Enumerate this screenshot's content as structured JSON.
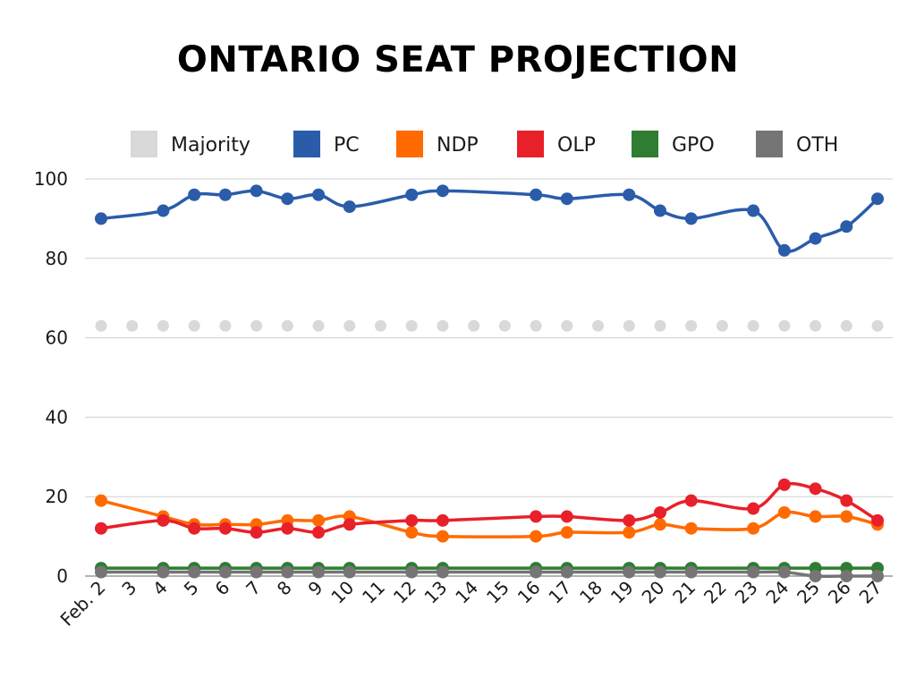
{
  "chart_data": {
    "type": "line",
    "title": "ONTARIO SEAT PROJECTION",
    "xlabel": "",
    "ylabel": "",
    "ylim": [
      0,
      100
    ],
    "y_ticks": [
      0,
      20,
      40,
      60,
      80,
      100
    ],
    "grid": true,
    "legend_position": "top",
    "categories": [
      "Feb. 2",
      "3",
      "4",
      "5",
      "6",
      "7",
      "8",
      "9",
      "10",
      "11",
      "12",
      "13",
      "14",
      "15",
      "16",
      "17",
      "18",
      "19",
      "20",
      "21",
      "22",
      "23",
      "24",
      "25",
      "26",
      "27"
    ],
    "series": [
      {
        "name": "Majority",
        "color": "#d9d9d9",
        "values": [
          63,
          63,
          63,
          63,
          63,
          63,
          63,
          63,
          63,
          63,
          63,
          63,
          63,
          63,
          63,
          63,
          63,
          63,
          63,
          63,
          63,
          63,
          63,
          63,
          63,
          63
        ]
      },
      {
        "name": "PC",
        "color": "#2a5caa",
        "values": [
          90,
          null,
          92,
          96,
          96,
          97,
          95,
          96,
          93,
          null,
          96,
          97,
          null,
          null,
          96,
          95,
          null,
          96,
          92,
          90,
          null,
          92,
          82,
          85,
          88,
          95
        ]
      },
      {
        "name": "NDP",
        "color": "#ff6a00",
        "values": [
          19,
          null,
          15,
          13,
          13,
          13,
          14,
          14,
          15,
          null,
          11,
          10,
          null,
          null,
          10,
          11,
          null,
          11,
          13,
          12,
          null,
          12,
          16,
          15,
          15,
          13
        ]
      },
      {
        "name": "OLP",
        "color": "#e8202a",
        "values": [
          12,
          null,
          14,
          12,
          12,
          11,
          12,
          11,
          13,
          null,
          14,
          14,
          null,
          null,
          15,
          15,
          null,
          14,
          16,
          19,
          null,
          17,
          23,
          22,
          19,
          14
        ]
      },
      {
        "name": "GPO",
        "color": "#2e7d32",
        "values": [
          2,
          null,
          2,
          2,
          2,
          2,
          2,
          2,
          2,
          null,
          2,
          2,
          null,
          null,
          2,
          2,
          null,
          2,
          2,
          2,
          null,
          2,
          2,
          2,
          2,
          2
        ]
      },
      {
        "name": "OTH",
        "color": "#757575",
        "values": [
          1,
          null,
          1,
          1,
          1,
          1,
          1,
          1,
          1,
          null,
          1,
          1,
          null,
          null,
          1,
          1,
          null,
          1,
          1,
          1,
          null,
          1,
          1,
          0,
          0,
          0
        ]
      }
    ]
  }
}
